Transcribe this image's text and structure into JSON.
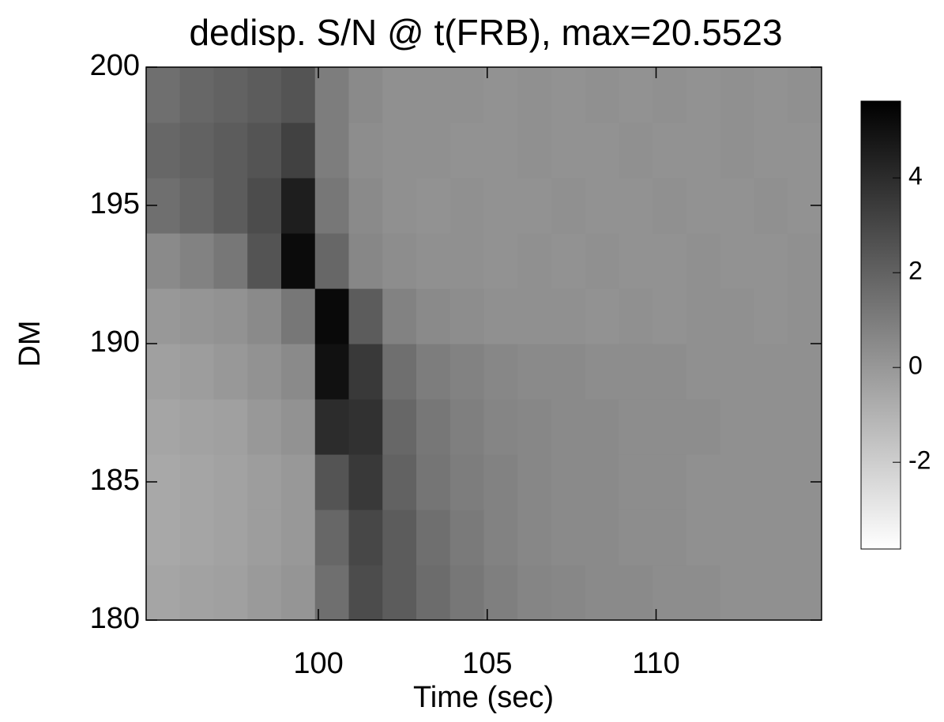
{
  "chart_data": {
    "type": "heatmap",
    "title": "dedisp. S/N @ t(FRB), max=20.5523",
    "xlabel": "Time (sec)",
    "ylabel": "DM",
    "xlim": [
      94.9,
      114.9
    ],
    "xticks": [
      100,
      105,
      110
    ],
    "ylim": [
      180,
      200
    ],
    "yticks": [
      180,
      185,
      190,
      195,
      200
    ],
    "zlim": [
      -3.83,
      5.62
    ],
    "colorbar_ticks": [
      -2,
      0,
      2,
      4
    ],
    "colormap": "gray_reversed",
    "x": [
      95.4,
      96.4,
      97.4,
      98.4,
      99.4,
      100.4,
      101.4,
      102.4,
      103.4,
      104.4,
      105.4,
      106.4,
      107.4,
      108.4,
      109.4,
      110.4,
      111.4,
      112.4,
      113.4,
      114.4
    ],
    "y": [
      181,
      183,
      185,
      187,
      189,
      191,
      193,
      195,
      197,
      199
    ],
    "z": [
      [
        -0.5,
        -0.4,
        -0.3,
        -0.1,
        0.1,
        1.5,
        2.8,
        2.2,
        1.6,
        1.2,
        0.9,
        0.7,
        0.6,
        0.5,
        0.5,
        0.4,
        0.4,
        0.3,
        0.3,
        0.3
      ],
      [
        -0.6,
        -0.5,
        -0.4,
        -0.2,
        0.0,
        1.8,
        3.0,
        2.2,
        1.5,
        1.1,
        0.8,
        0.6,
        0.5,
        0.5,
        0.4,
        0.4,
        0.3,
        0.3,
        0.3,
        0.3
      ],
      [
        -0.6,
        -0.5,
        -0.4,
        -0.2,
        0.0,
        2.5,
        3.5,
        2.0,
        1.3,
        1.0,
        0.8,
        0.6,
        0.5,
        0.5,
        0.4,
        0.4,
        0.3,
        0.3,
        0.3,
        0.3
      ],
      [
        -0.5,
        -0.4,
        -0.3,
        0.0,
        0.2,
        4.0,
        3.8,
        1.8,
        1.2,
        0.9,
        0.7,
        0.6,
        0.5,
        0.5,
        0.4,
        0.4,
        0.4,
        0.3,
        0.3,
        0.3
      ],
      [
        -0.3,
        -0.2,
        0.0,
        0.2,
        0.5,
        5.0,
        3.5,
        1.5,
        1.0,
        0.8,
        0.6,
        0.5,
        0.5,
        0.4,
        0.4,
        0.4,
        0.3,
        0.3,
        0.3,
        0.3
      ],
      [
        0.0,
        0.1,
        0.2,
        0.5,
        1.2,
        5.3,
        2.2,
        0.8,
        0.5,
        0.4,
        0.3,
        0.3,
        0.3,
        0.2,
        0.3,
        0.2,
        0.3,
        0.3,
        0.2,
        0.3
      ],
      [
        0.5,
        0.8,
        1.2,
        2.5,
        5.2,
        1.8,
        0.6,
        0.4,
        0.3,
        0.3,
        0.2,
        0.3,
        0.2,
        0.3,
        0.2,
        0.2,
        0.3,
        0.2,
        0.2,
        0.3
      ],
      [
        1.5,
        1.8,
        2.2,
        2.8,
        4.5,
        1.2,
        0.5,
        0.3,
        0.2,
        0.3,
        0.2,
        0.2,
        0.3,
        0.2,
        0.2,
        0.3,
        0.2,
        0.2,
        0.3,
        0.2
      ],
      [
        1.8,
        2.0,
        2.2,
        2.5,
        3.2,
        1.0,
        0.4,
        0.3,
        0.3,
        0.2,
        0.2,
        0.3,
        0.2,
        0.2,
        0.3,
        0.2,
        0.2,
        0.3,
        0.2,
        0.2
      ],
      [
        1.5,
        1.8,
        2.0,
        2.2,
        2.5,
        1.0,
        0.5,
        0.3,
        0.3,
        0.3,
        0.2,
        0.3,
        0.2,
        0.3,
        0.2,
        0.3,
        0.2,
        0.3,
        0.2,
        0.3
      ]
    ]
  }
}
